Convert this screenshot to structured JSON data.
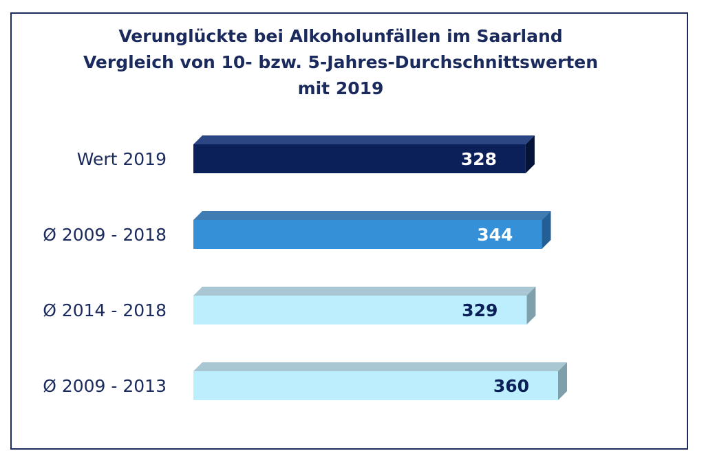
{
  "chart_data": {
    "type": "bar",
    "orientation": "horizontal",
    "title_lines": [
      "Verunglückte bei Alkoholunfällen im Saarland",
      "Vergleich von 10- bzw. 5-Jahres-Durchschnittswerten",
      "mit 2019"
    ],
    "categories": [
      "Wert 2019",
      "Ø 2009 - 2018",
      "Ø 2014 - 2018",
      "Ø 2009 - 2013"
    ],
    "values": [
      328,
      344,
      329,
      360
    ],
    "value_labels": [
      "328",
      "344",
      "329",
      "360"
    ],
    "xlim": [
      0,
      360
    ],
    "grid": false,
    "legend": "none",
    "colors": {
      "bar_front": [
        "#0b1f58",
        "#3590d8",
        "#bdeefd",
        "#bdeefd"
      ],
      "bar_top": [
        "#2c4684",
        "#3f7cb4",
        "#a9c6d3",
        "#a9c6d3"
      ],
      "bar_side": [
        "#061338",
        "#235f94",
        "#7f9fab",
        "#7f9fab"
      ],
      "value_text": [
        "#ffffff",
        "#ffffff",
        "#0b1f58",
        "#0b1f58"
      ],
      "frame": "#1b2a5c",
      "title": "#1b2a5c"
    }
  }
}
